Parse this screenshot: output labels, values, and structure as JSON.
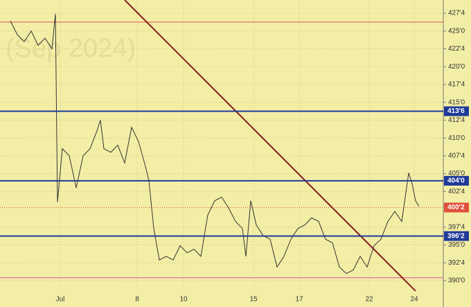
{
  "chart_data": {
    "type": "line",
    "watermark": "(Sep 2024)",
    "x": [
      3,
      5,
      7,
      9,
      11,
      13,
      15,
      16,
      16.6,
      18,
      20,
      22,
      24,
      26,
      28,
      29,
      30,
      32,
      34,
      36,
      38,
      40,
      42,
      43,
      44.4,
      46,
      48,
      50,
      52,
      54,
      56,
      58,
      60,
      62,
      64,
      66,
      68,
      70,
      71,
      72.4,
      74,
      76,
      78,
      80,
      82,
      84,
      86,
      88,
      90,
      92,
      94,
      96,
      98,
      100,
      102,
      104,
      106,
      108,
      110,
      112,
      114,
      116,
      118,
      119,
      120,
      121
    ],
    "values": [
      426.4,
      424.5,
      423.5,
      425,
      423,
      424,
      422.5,
      427.4,
      401,
      408.5,
      407.5,
      403,
      407.5,
      408.5,
      411,
      412.5,
      408.5,
      408,
      409,
      406.5,
      411.5,
      409.5,
      406,
      404,
      397.3,
      392.9,
      393.4,
      392.9,
      394.9,
      393.9,
      394.4,
      393.4,
      399.2,
      401.2,
      401.7,
      400.2,
      398.3,
      397.3,
      393.4,
      401.2,
      397.8,
      396.3,
      395.8,
      391.9,
      393.4,
      395.8,
      397.3,
      397.8,
      398.8,
      398.3,
      395.8,
      395.3,
      391.9,
      391,
      391.5,
      393.4,
      391.9,
      394.9,
      395.8,
      398.3,
      399.7,
      398.3,
      405.1,
      403.6,
      401.2,
      400.4
    ],
    "color": "#333333",
    "xlim": [
      0,
      128
    ],
    "ylim": [
      386.3,
      429.35
    ],
    "xticks": [
      {
        "value": 17.4,
        "label": "Jul"
      },
      {
        "value": 39.6,
        "label": "8"
      },
      {
        "value": 53,
        "label": "10"
      },
      {
        "value": 73.2,
        "label": "15"
      },
      {
        "value": 86.4,
        "label": "17"
      },
      {
        "value": 106.6,
        "label": "22"
      },
      {
        "value": 119.6,
        "label": "24"
      }
    ],
    "yticks": [
      {
        "value": 390,
        "label": "390'0"
      },
      {
        "value": 392.5,
        "label": "392'4"
      },
      {
        "value": 395,
        "label": "395'0"
      },
      {
        "value": 397.5,
        "label": "397'4"
      },
      {
        "value": 402.5,
        "label": "402'4"
      },
      {
        "value": 405,
        "label": "405'0"
      },
      {
        "value": 407.5,
        "label": "407'4"
      },
      {
        "value": 410,
        "label": "410'0"
      },
      {
        "value": 412.5,
        "label": "412'4"
      },
      {
        "value": 415,
        "label": "415'0"
      },
      {
        "value": 417.5,
        "label": "417'4"
      },
      {
        "value": 420,
        "label": "420'0"
      },
      {
        "value": 422.5,
        "label": "422'4"
      },
      {
        "value": 425,
        "label": "425'0"
      },
      {
        "value": 427.5,
        "label": "427'4"
      }
    ],
    "grid": true,
    "levels": [
      {
        "value": 413.75,
        "label": "413'6",
        "color": "#1f3a9a"
      },
      {
        "value": 404,
        "label": "404'0",
        "color": "#1f3a9a"
      },
      {
        "value": 396.25,
        "label": "396'2",
        "color": "#1f3a9a"
      },
      {
        "value": 400.25,
        "label": "400'2",
        "color": "#e0503c"
      }
    ],
    "lines": [
      {
        "value": 426.25,
        "color": "#d9534f"
      },
      {
        "value": 390.4,
        "color": "#d957a0"
      }
    ],
    "trendline": {
      "x": [
        36,
        120
      ],
      "values": [
        429.35,
        388.54
      ],
      "color": "#8b1a1a"
    }
  }
}
